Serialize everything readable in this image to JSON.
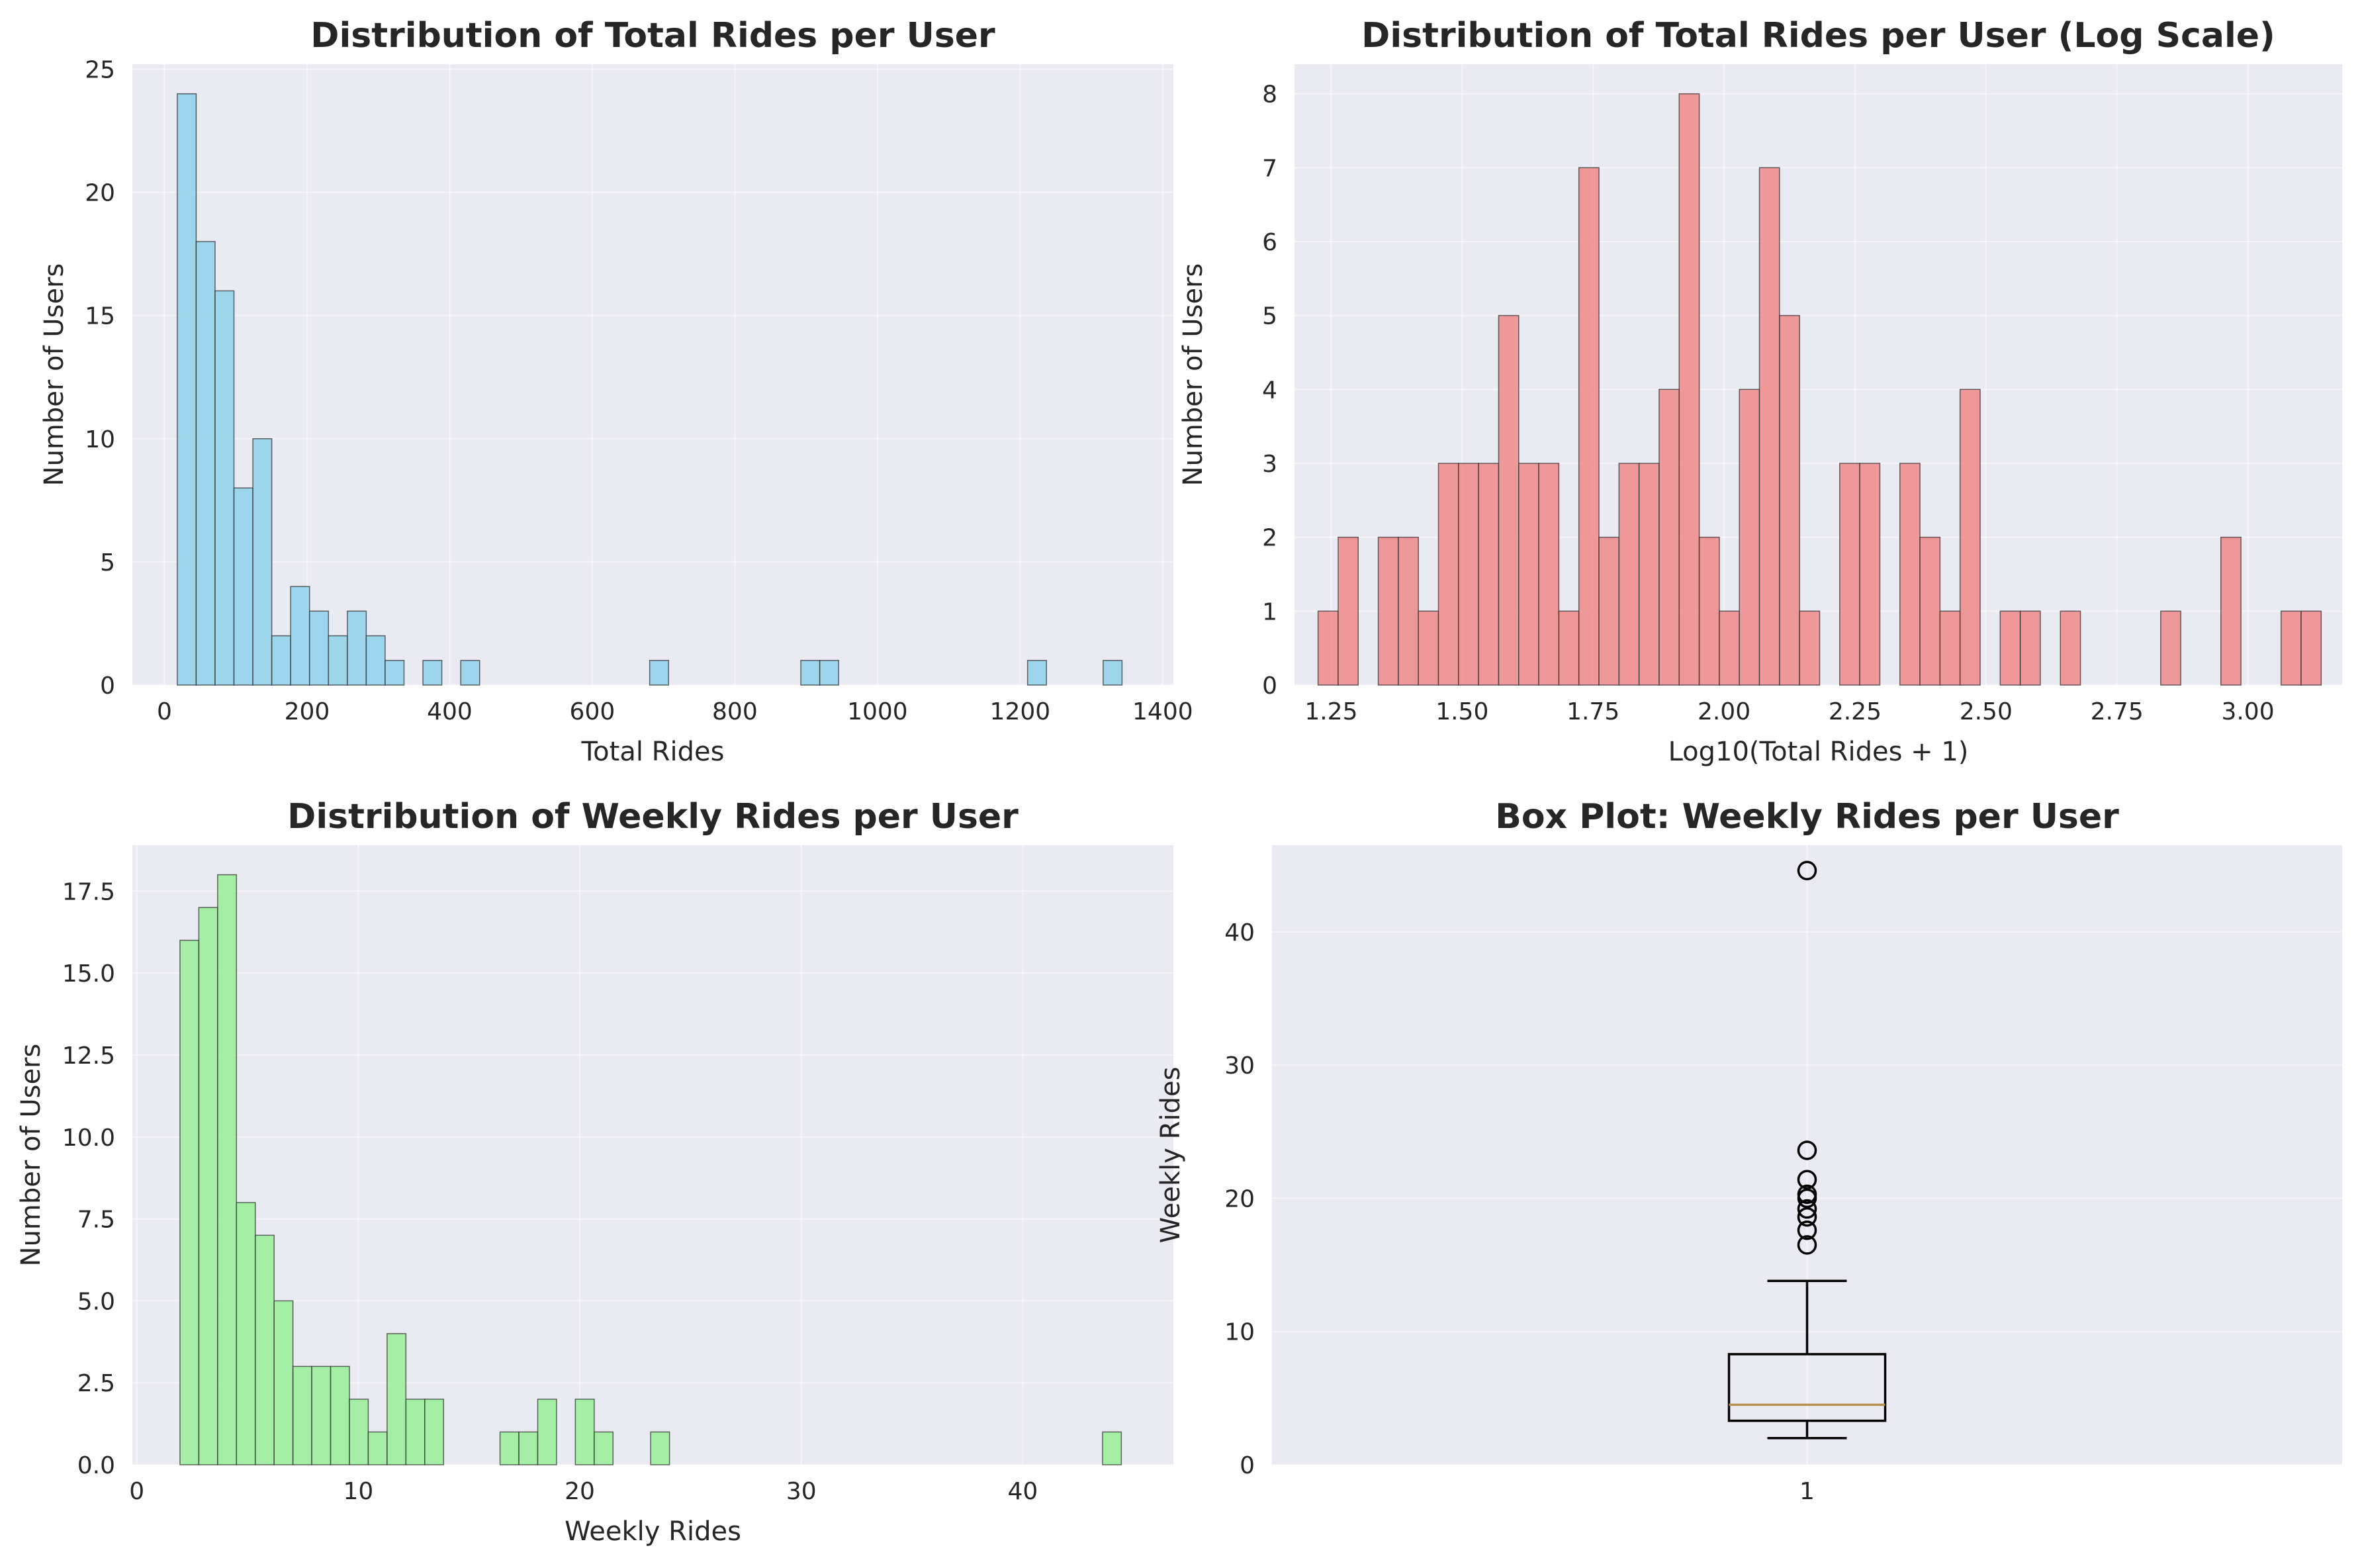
{
  "chart_data": [
    {
      "type": "bar",
      "title": "Distribution of Total Rides per User",
      "xlabel": "Total Rides",
      "ylabel": "Number of Users",
      "color": "#87ceeb",
      "xlim": [
        -45,
        1415
      ],
      "ylim": [
        0,
        25.2
      ],
      "xticks": [
        0,
        200,
        400,
        600,
        800,
        1000,
        1200,
        1400
      ],
      "xtick_labels": [
        "0",
        "200",
        "400",
        "600",
        "800",
        "1000",
        "1200",
        "1400"
      ],
      "yticks": [
        0,
        5,
        10,
        15,
        20,
        25
      ],
      "ytick_labels": [
        "0",
        "5",
        "10",
        "15",
        "20",
        "25"
      ],
      "bin_start": 18,
      "bin_width": 26.5,
      "counts": [
        24,
        18,
        16,
        8,
        10,
        2,
        4,
        3,
        2,
        3,
        2,
        1,
        0,
        1,
        0,
        1,
        0,
        0,
        0,
        0,
        0,
        0,
        0,
        0,
        0,
        1,
        0,
        0,
        0,
        0,
        0,
        0,
        0,
        1,
        1,
        0,
        0,
        0,
        0,
        0,
        0,
        0,
        0,
        0,
        0,
        1,
        0,
        0,
        0,
        1
      ]
    },
    {
      "type": "bar",
      "title": "Distribution of Total Rides per User (Log Scale)",
      "xlabel": "Log10(Total Rides + 1)",
      "ylabel": "Number of Users",
      "color": "#f08080",
      "xlim": [
        1.18,
        3.18
      ],
      "ylim": [
        0,
        8.4
      ],
      "xticks": [
        1.25,
        1.5,
        1.75,
        2.0,
        2.25,
        2.5,
        2.75,
        3.0
      ],
      "xtick_labels": [
        "1.25",
        "1.50",
        "1.75",
        "2.00",
        "2.25",
        "2.50",
        "2.75",
        "3.00"
      ],
      "yticks": [
        0,
        1,
        2,
        3,
        4,
        5,
        6,
        7,
        8
      ],
      "ytick_labels": [
        "0",
        "1",
        "2",
        "3",
        "4",
        "5",
        "6",
        "7",
        "8"
      ],
      "bin_start": 1.225,
      "bin_width": 0.0383,
      "counts": [
        1,
        2,
        0,
        2,
        2,
        1,
        3,
        3,
        3,
        5,
        3,
        3,
        1,
        7,
        2,
        3,
        3,
        4,
        8,
        2,
        1,
        4,
        7,
        5,
        1,
        0,
        3,
        3,
        0,
        3,
        2,
        1,
        4,
        0,
        1,
        1,
        0,
        1,
        0,
        0,
        0,
        0,
        1,
        0,
        0,
        2,
        0,
        0,
        1,
        1
      ]
    },
    {
      "type": "bar",
      "title": "Distribution of Weekly Rides per User",
      "xlabel": "Weekly Rides",
      "ylabel": "Number of Users",
      "color": "#90ee90",
      "xlim": [
        -0.2,
        46.8
      ],
      "ylim": [
        0,
        18.9
      ],
      "xticks": [
        0,
        10,
        20,
        30,
        40
      ],
      "xtick_labels": [
        "0",
        "10",
        "20",
        "30",
        "40"
      ],
      "yticks": [
        0,
        2.5,
        5,
        7.5,
        10,
        12.5,
        15,
        17.5
      ],
      "ytick_labels": [
        "0.0",
        "2.5",
        "5.0",
        "7.5",
        "10.0",
        "12.5",
        "15.0",
        "17.5"
      ],
      "bin_start": 1.95,
      "bin_width": 0.85,
      "counts": [
        16,
        17,
        18,
        8,
        7,
        5,
        3,
        3,
        3,
        2,
        1,
        4,
        2,
        2,
        0,
        0,
        0,
        1,
        1,
        2,
        0,
        2,
        1,
        0,
        0,
        1,
        0,
        0,
        0,
        0,
        0,
        0,
        0,
        0,
        0,
        0,
        0,
        0,
        0,
        0,
        0,
        0,
        0,
        0,
        0,
        0,
        0,
        0,
        0,
        1
      ]
    },
    {
      "type": "box",
      "title": "Box Plot: Weekly Rides per User",
      "xlabel": "",
      "ylabel": "Weekly Rides",
      "xlim": [
        0.5,
        1.5
      ],
      "ylim": [
        0,
        46.5
      ],
      "xticks": [
        1
      ],
      "xtick_labels": [
        "1"
      ],
      "yticks": [
        0,
        10,
        20,
        30,
        40
      ],
      "ytick_labels": [
        "0",
        "10",
        "20",
        "30",
        "40"
      ],
      "box": {
        "whisker_low": 2.0,
        "q1": 3.3,
        "median": 4.5,
        "q3": 8.3,
        "whisker_high": 13.8
      },
      "outliers": [
        16.5,
        17.6,
        18.6,
        19.2,
        20.0,
        20.3,
        21.4,
        23.6,
        44.6
      ],
      "box_color": "#000000",
      "median_color": "#b8924a"
    }
  ]
}
